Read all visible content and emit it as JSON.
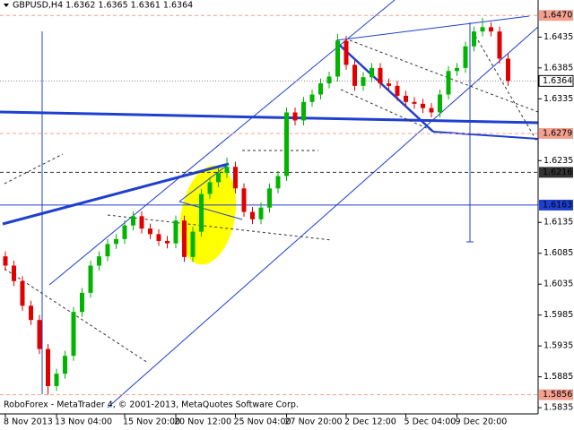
{
  "chart_data": {
    "type": "candlestick",
    "title": "GBPUSD,H4  1.6362 1.6365 1.6361 1.6364",
    "footer": "RoboForex - MetaTrader 4, © 2001-2013, MetaQuotes Software Corp.",
    "up_color": "#00b400",
    "down_color": "#e00000",
    "open": [
      1.608,
      1.6065,
      1.604,
      1.6,
      1.5977,
      1.593,
      1.587,
      1.589,
      1.5919,
      1.599,
      1.6021,
      1.6065,
      1.608,
      1.61,
      1.6108,
      1.613,
      1.6145,
      1.6125,
      1.6116,
      1.6105,
      1.6101,
      1.6138,
      1.6079,
      1.612,
      1.6181,
      1.62,
      1.6215,
      1.6225,
      1.619,
      1.6152,
      1.614,
      1.6159,
      1.619,
      1.621,
      1.6313,
      1.63,
      1.633,
      1.6342,
      1.636,
      1.6371,
      1.6429,
      1.639,
      1.6356,
      1.637,
      1.6385,
      1.636,
      1.6356,
      1.634,
      1.633,
      1.6327,
      1.632,
      1.6313,
      1.6342,
      1.638,
      1.6385,
      1.642,
      1.6444,
      1.6451,
      1.6444,
      1.64
    ],
    "high": [
      1.6088,
      1.6073,
      1.6048,
      1.6008,
      1.5985,
      1.5938,
      1.5898,
      1.5927,
      1.5998,
      1.6029,
      1.6073,
      1.6088,
      1.6108,
      1.6116,
      1.6138,
      1.6153,
      1.6153,
      1.6133,
      1.6124,
      1.6113,
      1.6146,
      1.6146,
      1.6128,
      1.6189,
      1.6208,
      1.6223,
      1.624,
      1.6233,
      1.6198,
      1.616,
      1.6167,
      1.6198,
      1.6218,
      1.6321,
      1.6321,
      1.6338,
      1.635,
      1.6368,
      1.6379,
      1.644,
      1.6437,
      1.6398,
      1.6378,
      1.6393,
      1.6393,
      1.6368,
      1.6364,
      1.6348,
      1.6338,
      1.6335,
      1.6328,
      1.635,
      1.6388,
      1.6393,
      1.6428,
      1.6452,
      1.6466,
      1.6459,
      1.6452,
      1.6408
    ],
    "low": [
      1.6057,
      1.6032,
      1.5992,
      1.5969,
      1.5922,
      1.5856,
      1.5862,
      1.5882,
      1.5911,
      1.5982,
      1.6013,
      1.6057,
      1.6072,
      1.6092,
      1.61,
      1.6122,
      1.6117,
      1.6108,
      1.6097,
      1.6093,
      1.6093,
      1.6071,
      1.6071,
      1.6112,
      1.6173,
      1.6192,
      1.6207,
      1.6182,
      1.6144,
      1.6132,
      1.6132,
      1.6151,
      1.6182,
      1.6202,
      1.6292,
      1.6292,
      1.6322,
      1.6334,
      1.6352,
      1.6363,
      1.6382,
      1.6348,
      1.6348,
      1.6362,
      1.6352,
      1.6348,
      1.6332,
      1.6322,
      1.6319,
      1.6312,
      1.6305,
      1.6305,
      1.6334,
      1.6372,
      1.6377,
      1.6412,
      1.6436,
      1.6436,
      1.6392,
      1.6356
    ],
    "close": [
      1.6065,
      1.604,
      1.6,
      1.5977,
      1.593,
      1.587,
      1.589,
      1.5919,
      1.599,
      1.6021,
      1.6065,
      1.608,
      1.61,
      1.6108,
      1.613,
      1.6145,
      1.6125,
      1.6116,
      1.6105,
      1.6101,
      1.6138,
      1.6079,
      1.612,
      1.6181,
      1.62,
      1.6215,
      1.6225,
      1.619,
      1.6152,
      1.614,
      1.6159,
      1.619,
      1.621,
      1.6313,
      1.63,
      1.633,
      1.6342,
      1.636,
      1.6371,
      1.6429,
      1.639,
      1.6356,
      1.637,
      1.6385,
      1.636,
      1.6356,
      1.634,
      1.633,
      1.6327,
      1.632,
      1.6313,
      1.6342,
      1.638,
      1.6385,
      1.642,
      1.6444,
      1.6451,
      1.6444,
      1.64,
      1.6364
    ],
    "xticks": [
      {
        "value": 0,
        "label": "8 Nov 2013"
      },
      {
        "value": 6,
        "label": "13 Nov 04:00"
      },
      {
        "value": 14,
        "label": "15 Nov 20:00"
      },
      {
        "value": 20,
        "label": "20 Nov 12:00"
      },
      {
        "value": 27,
        "label": "25 Nov 04:00"
      },
      {
        "value": 33,
        "label": "27 Nov 20:00"
      },
      {
        "value": 40,
        "label": "2 Dec 12:00"
      },
      {
        "value": 47,
        "label": "5 Dec 04:00"
      },
      {
        "value": 53,
        "label": "9 Dec 20:00"
      }
    ],
    "ylim": [
      1.5825,
      1.6495
    ],
    "yticks": [
      1.6435,
      1.6385,
      1.6335,
      1.6235,
      1.6135,
      1.6085,
      1.6035,
      1.5985,
      1.5935,
      1.5885,
      1.5835
    ],
    "levels": [
      {
        "value": 1.647,
        "label": "1.6470",
        "color": "#f4a090",
        "style": "dashed"
      },
      {
        "value": 1.6364,
        "color": "#888888",
        "style": "dotted"
      },
      {
        "value": 1.6279,
        "color": "#f4a090",
        "style": "dashed"
      },
      {
        "value": 1.6216,
        "color": "#333333",
        "style": "dashed"
      },
      {
        "value": 1.6163,
        "color": "#1f3fd0",
        "style": "solid"
      },
      {
        "value": 1.5856,
        "color": "#f4a090",
        "style": "dashed"
      }
    ]
  }
}
